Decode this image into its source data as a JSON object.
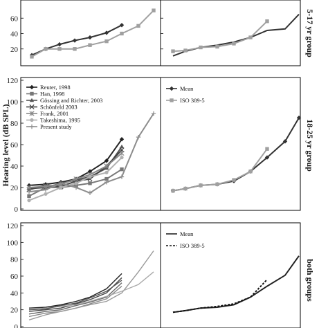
{
  "figure": {
    "ylabel": "Hearing level (dB SPL)",
    "groups": [
      "5-17 yr group",
      "18-25 yr group",
      "both groups"
    ]
  },
  "chart_data": [
    {
      "id": "p1",
      "type": "line",
      "ylim": [
        0,
        80
      ],
      "yticks": [
        20,
        40,
        60
      ],
      "series": [
        {
          "color": "#333333",
          "marker": "diamond",
          "values": [
            12,
            20,
            26,
            31,
            35,
            41,
            51
          ]
        },
        {
          "color": "#a0a0a0",
          "marker": "square",
          "values": [
            10,
            20,
            20,
            20,
            25,
            30,
            40,
            50,
            70
          ]
        }
      ]
    },
    {
      "id": "p2",
      "type": "line",
      "ylim": [
        0,
        80
      ],
      "yticks": [
        20,
        40,
        60
      ],
      "series": [
        {
          "color": "#333333",
          "marker": "none",
          "values": [
            11,
            17,
            22,
            25,
            29,
            35,
            44,
            46,
            65
          ]
        },
        {
          "color": "#a0a0a0",
          "marker": "square",
          "values": [
            17,
            18,
            22,
            23,
            27,
            35,
            56
          ]
        }
      ]
    },
    {
      "id": "p3",
      "type": "line",
      "ylim": [
        0,
        120
      ],
      "yticks": [
        0,
        20,
        40,
        60,
        80,
        100,
        120
      ],
      "legend": {
        "placement": "top-left",
        "entries": [
          "Reuter, 1998",
          "Han, 1998",
          "Gössing and Richter, 2003",
          "Schönfeld 2003",
          "Frank, 2001",
          "Takeshima, 1995",
          "Present study"
        ]
      },
      "series": [
        {
          "name": "Reuter, 1998",
          "color": "#222222",
          "marker": "diamond",
          "values": [
            22,
            23,
            25,
            28,
            35,
            45,
            65
          ]
        },
        {
          "name": "Han, 1998",
          "color": "#777777",
          "marker": "square",
          "values": [
            12,
            20,
            20,
            22,
            24,
            28,
            37
          ]
        },
        {
          "name": "Gössing and Richter, 2003",
          "color": "#555555",
          "marker": "triangle",
          "values": [
            19,
            20,
            24,
            27,
            30,
            38,
            58
          ]
        },
        {
          "name": "Schönfeld 2003",
          "color": "#444444",
          "marker": "x",
          "values": [
            18,
            22,
            21,
            26,
            28,
            40,
            55
          ]
        },
        {
          "name": "Frank, 2001",
          "color": "#888888",
          "marker": "star",
          "values": [
            20,
            21,
            23,
            28,
            32,
            40,
            52
          ]
        },
        {
          "name": "Takeshima, 1995",
          "color": "#b0b0b0",
          "marker": "circle",
          "values": [
            8,
            14,
            20,
            24,
            30,
            34,
            48
          ]
        },
        {
          "name": "Present study",
          "color": "#8c8c8c",
          "marker": "plus",
          "values": [
            16,
            18,
            24,
            20,
            15,
            25,
            30,
            67,
            89
          ]
        }
      ]
    },
    {
      "id": "p4",
      "type": "line",
      "ylim": [
        0,
        120
      ],
      "yticks": [],
      "legend": {
        "placement": "top-left",
        "entries": [
          "Mean",
          "ISO 389-5"
        ]
      },
      "series": [
        {
          "name": "Mean",
          "color": "#333333",
          "marker": "diamond",
          "values": [
            17,
            19,
            22,
            23,
            26,
            35,
            48,
            63,
            85
          ]
        },
        {
          "name": "ISO 389-5",
          "color": "#a0a0a0",
          "marker": "square",
          "values": [
            17,
            19,
            22,
            23,
            27,
            35,
            56
          ]
        }
      ]
    },
    {
      "id": "p5",
      "type": "line",
      "ylim": [
        0,
        120
      ],
      "yticks": [
        0,
        20,
        40,
        60,
        80,
        100,
        120
      ],
      "series": [
        {
          "color": "#222222",
          "marker": "none",
          "values": [
            22,
            23,
            26,
            30,
            35,
            45,
            63
          ]
        },
        {
          "color": "#444444",
          "marker": "none",
          "values": [
            18,
            20,
            22,
            27,
            32,
            40,
            58
          ]
        },
        {
          "color": "#666666",
          "marker": "none",
          "values": [
            15,
            18,
            20,
            25,
            29,
            35,
            52
          ]
        },
        {
          "color": "#888888",
          "marker": "none",
          "values": [
            12,
            16,
            18,
            22,
            27,
            33,
            48
          ]
        },
        {
          "color": "#999999",
          "marker": "none",
          "values": [
            8,
            14,
            18,
            22,
            26,
            30,
            40,
            65,
            90
          ]
        },
        {
          "color": "#aaaaaa",
          "marker": "none",
          "values": [
            20,
            22,
            24,
            26,
            30,
            36,
            42,
            50,
            65
          ]
        },
        {
          "color": "#555555",
          "marker": "none",
          "values": [
            20,
            21,
            25,
            28,
            34,
            42,
            55
          ]
        }
      ]
    },
    {
      "id": "p6",
      "type": "line",
      "ylim": [
        0,
        120
      ],
      "yticks": [],
      "legend": {
        "placement": "top-left",
        "entries": [
          "Mean",
          "ISO 389-5"
        ]
      },
      "series": [
        {
          "name": "Mean",
          "color": "#222222",
          "marker": "none",
          "dash": false,
          "values": [
            17,
            19,
            22,
            23,
            26,
            35,
            48,
            61,
            84
          ]
        },
        {
          "name": "ISO 389-5",
          "color": "#111111",
          "marker": "none",
          "dash": true,
          "values": [
            17,
            19,
            22,
            24,
            27,
            35,
            56
          ]
        }
      ]
    }
  ]
}
